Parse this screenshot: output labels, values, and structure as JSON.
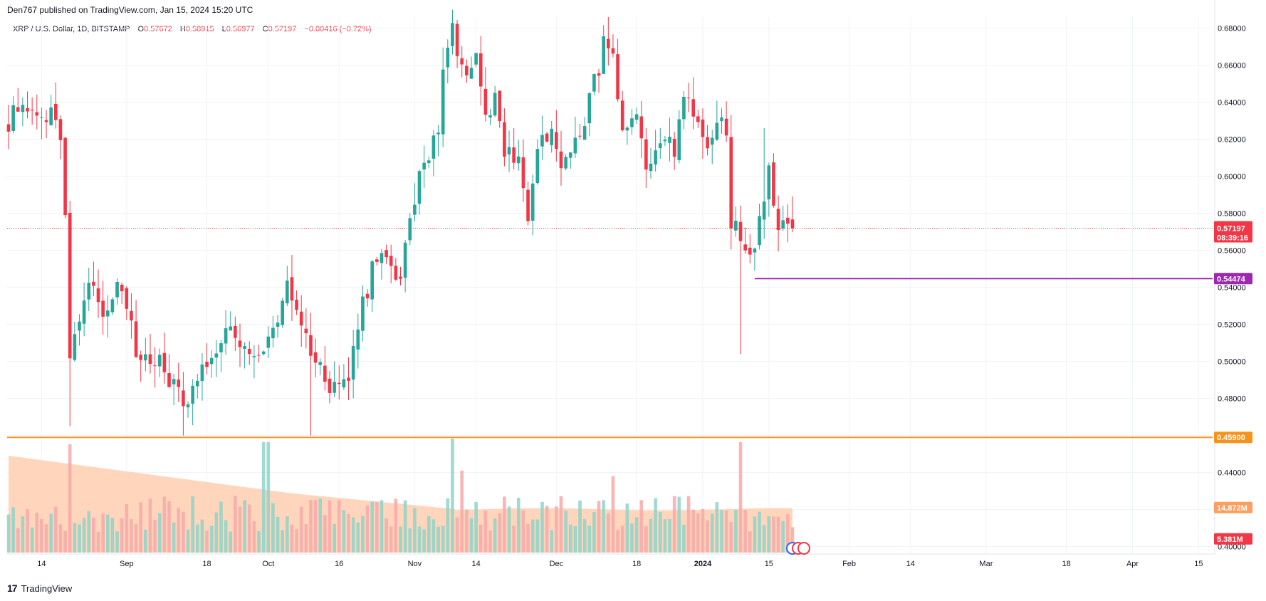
{
  "header": {
    "published": "Den767 published on TradingView.com, Jan 15, 2024 15:20 UTC"
  },
  "legend": {
    "symbol": "XRP / U.S. Dollar, 1D, BITSTAMP",
    "o_label": "O",
    "o_value": "0.57672",
    "h_label": "H",
    "h_value": "0.58915",
    "l_label": "L",
    "l_value": "0.56977",
    "c_label": "C",
    "c_value": "0.57197",
    "change": "−0.00416 (−0.72%)"
  },
  "footer": {
    "brand": "TradingView",
    "logo_text": "17"
  },
  "colors": {
    "up": "#26a69a",
    "down": "#f23645",
    "support": "#f7931a",
    "level": "#9c27b0",
    "volume_ma": "#ffcfb0",
    "grid": "#f0f3fa"
  },
  "chart_data": {
    "type": "candlestick",
    "title": "XRP / U.S. Dollar, 1D, BITSTAMP",
    "ylim": [
      0.396,
      0.686
    ],
    "y_ticks": [
      "0.68000",
      "0.66000",
      "0.64000",
      "0.62000",
      "0.60000",
      "0.58000",
      "0.56000",
      "0.54000",
      "0.52000",
      "0.50000",
      "0.48000",
      "0.46000",
      "0.44000",
      "0.42000",
      "0.40000"
    ],
    "x_start_day": 0,
    "x_end_day": 199,
    "x_ticks": [
      {
        "day": 7,
        "label": "14"
      },
      {
        "day": 25,
        "label": "Sep"
      },
      {
        "day": 42,
        "label": "18"
      },
      {
        "day": 55,
        "label": "Oct"
      },
      {
        "day": 70,
        "label": "16"
      },
      {
        "day": 86,
        "label": "Nov"
      },
      {
        "day": 99,
        "label": "14"
      },
      {
        "day": 116,
        "label": "Dec"
      },
      {
        "day": 133,
        "label": "18"
      },
      {
        "day": 147,
        "label": "2024"
      },
      {
        "day": 161,
        "label": "15"
      },
      {
        "day": 178,
        "label": "Feb"
      },
      {
        "day": 191,
        "label": "14"
      },
      {
        "day": 207,
        "label": "Mar"
      },
      {
        "day": 224,
        "label": "18"
      },
      {
        "day": 238,
        "label": "Apr"
      },
      {
        "day": 252,
        "label": "15"
      }
    ],
    "anchors": [
      {
        "day": 0,
        "price": 0.63
      },
      {
        "day": 3,
        "price": 0.642
      },
      {
        "day": 6,
        "price": 0.628
      },
      {
        "day": 9,
        "price": 0.635
      },
      {
        "day": 11,
        "price": 0.62
      },
      {
        "day": 12,
        "price": 0.585
      },
      {
        "day": 13,
        "price": 0.505
      },
      {
        "day": 15,
        "price": 0.525
      },
      {
        "day": 17,
        "price": 0.545
      },
      {
        "day": 20,
        "price": 0.528
      },
      {
        "day": 24,
        "price": 0.54
      },
      {
        "day": 27,
        "price": 0.505
      },
      {
        "day": 31,
        "price": 0.503
      },
      {
        "day": 37,
        "price": 0.478
      },
      {
        "day": 40,
        "price": 0.492
      },
      {
        "day": 43,
        "price": 0.505
      },
      {
        "day": 46,
        "price": 0.518
      },
      {
        "day": 49,
        "price": 0.508
      },
      {
        "day": 52,
        "price": 0.498
      },
      {
        "day": 55,
        "price": 0.512
      },
      {
        "day": 59,
        "price": 0.538
      },
      {
        "day": 62,
        "price": 0.522
      },
      {
        "day": 65,
        "price": 0.5
      },
      {
        "day": 68,
        "price": 0.487
      },
      {
        "day": 72,
        "price": 0.49
      },
      {
        "day": 74,
        "price": 0.52
      },
      {
        "day": 78,
        "price": 0.558
      },
      {
        "day": 83,
        "price": 0.545
      },
      {
        "day": 85,
        "price": 0.575
      },
      {
        "day": 88,
        "price": 0.61
      },
      {
        "day": 91,
        "price": 0.623
      },
      {
        "day": 92,
        "price": 0.66
      },
      {
        "day": 94,
        "price": 0.685
      },
      {
        "day": 96,
        "price": 0.655
      },
      {
        "day": 99,
        "price": 0.668
      },
      {
        "day": 101,
        "price": 0.632
      },
      {
        "day": 103,
        "price": 0.646
      },
      {
        "day": 105,
        "price": 0.613
      },
      {
        "day": 108,
        "price": 0.61
      },
      {
        "day": 110,
        "price": 0.578
      },
      {
        "day": 112,
        "price": 0.615
      },
      {
        "day": 115,
        "price": 0.622
      },
      {
        "day": 117,
        "price": 0.605
      },
      {
        "day": 120,
        "price": 0.619
      },
      {
        "day": 123,
        "price": 0.64
      },
      {
        "day": 126,
        "price": 0.67
      },
      {
        "day": 128,
        "price": 0.662
      },
      {
        "day": 130,
        "price": 0.62
      },
      {
        "day": 133,
        "price": 0.628
      },
      {
        "day": 135,
        "price": 0.605
      },
      {
        "day": 138,
        "price": 0.623
      },
      {
        "day": 141,
        "price": 0.612
      },
      {
        "day": 143,
        "price": 0.648
      },
      {
        "day": 145,
        "price": 0.632
      },
      {
        "day": 148,
        "price": 0.62
      },
      {
        "day": 150,
        "price": 0.63
      },
      {
        "day": 152,
        "price": 0.622
      },
      {
        "day": 153,
        "price": 0.577
      },
      {
        "day": 155,
        "price": 0.567
      },
      {
        "day": 157,
        "price": 0.555
      },
      {
        "day": 159,
        "price": 0.576
      },
      {
        "day": 161,
        "price": 0.6
      },
      {
        "day": 163,
        "price": 0.568
      },
      {
        "day": 165,
        "price": 0.574
      },
      {
        "day": 166,
        "price": 0.572
      }
    ],
    "wick_extremes": [
      {
        "day": 13,
        "low": 0.465
      },
      {
        "day": 37,
        "low": 0.46
      },
      {
        "day": 64,
        "low": 0.46
      },
      {
        "day": 94,
        "high": 0.69
      },
      {
        "day": 127,
        "high": 0.686
      },
      {
        "day": 155,
        "low": 0.504
      },
      {
        "day": 160,
        "high": 0.626
      }
    ],
    "last_candle": {
      "day": 166,
      "open": 0.57672,
      "high": 0.58915,
      "low": 0.56977,
      "close": 0.57197
    },
    "current_price": {
      "value": 0.57197,
      "label": "0.57197",
      "countdown": "08:39:16"
    },
    "support_line": {
      "value": 0.459,
      "label": "0.45900"
    },
    "level_line": {
      "value": 0.54474,
      "label": "0.54474",
      "start_day": 158
    },
    "volume": {
      "ylim_fraction_of_pane": 1,
      "ma_label": "14.872M",
      "last_label": "5.381M",
      "spikes": [
        {
          "day": 13,
          "rel": 0.95
        },
        {
          "day": 54,
          "rel": 0.97
        },
        {
          "day": 55,
          "rel": 0.97
        },
        {
          "day": 94,
          "rel": 1.0
        },
        {
          "day": 96,
          "rel": 0.72
        },
        {
          "day": 155,
          "rel": 0.97
        },
        {
          "day": 128,
          "rel": 0.67
        }
      ]
    }
  }
}
